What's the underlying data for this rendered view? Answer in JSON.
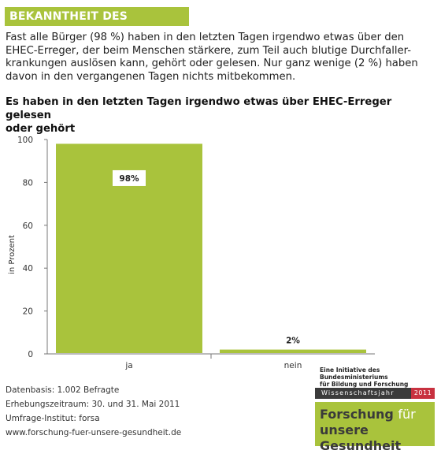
{
  "header": {
    "title": "BEKANNTHEIT DES ERREGERS"
  },
  "intro": {
    "lines": [
      "Fast alle Bürger (98 %) haben in den letzten Tagen irgendwo etwas über den",
      "EHEC-Erreger, der beim Menschen stärkere, zum Teil auch blutige Durchfaller-",
      "krankungen auslösen kann, gehört oder gelesen. Nur ganz wenige (2 %) haben",
      "davon in den vergangenen Tagen nichts mitbekommen."
    ]
  },
  "question": {
    "lines": [
      "Es haben in den letzten Tagen irgendwo etwas über EHEC-Erreger gelesen",
      "oder gehört"
    ]
  },
  "chart_data": {
    "type": "bar",
    "categories": [
      "ja",
      "nein"
    ],
    "values": [
      98,
      2
    ],
    "value_labels": [
      "98%",
      "2%"
    ],
    "ylabel": "in Prozent",
    "ylim": [
      0,
      100
    ],
    "yticks": [
      "100",
      "80",
      "60",
      "40",
      "20",
      "0"
    ],
    "grid": false,
    "bar_color": "#a9c33c"
  },
  "footer": {
    "basis": "Datenbasis: 1.002 Befragte",
    "period": "Erhebungszeitraum: 30. und 31. Mai 2011",
    "institute": "Umfrage-Institut: forsa",
    "url": "www.forschung-fuer-unsere-gesundheit.de"
  },
  "logo": {
    "initiative_line1": "Eine Initiative des Bundesministeriums",
    "initiative_line2": "für Bildung und Forschung",
    "band": "Wissenschaftsjahr",
    "year": "2011",
    "line1_bold": "Forschung",
    "line1_light": "für",
    "line2_bold": "unsere Gesundheit"
  },
  "colors": {
    "accent": "#a9c33c",
    "band": "#3b3b3b",
    "year_badge": "#c8313f"
  }
}
